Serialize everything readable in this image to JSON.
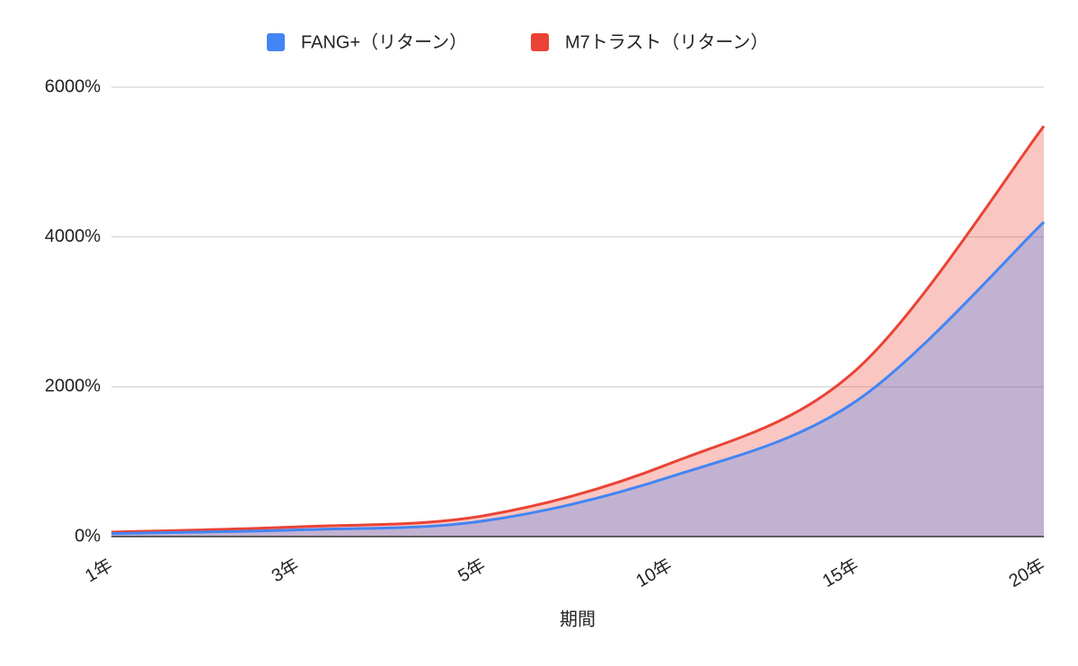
{
  "chart_data": {
    "type": "area",
    "categories": [
      "1年",
      "3年",
      "5年",
      "10年",
      "15年",
      "20年"
    ],
    "series": [
      {
        "name": "FANG+（リターン）",
        "color": "#4285f4",
        "values": [
          40,
          90,
          210,
          800,
          1820,
          4200
        ]
      },
      {
        "name": "M7トラスト（リターン）",
        "color": "#ea4335",
        "values": [
          60,
          130,
          280,
          980,
          2240,
          5480
        ]
      }
    ],
    "ylim": [
      0,
      6000
    ],
    "yticks": [
      {
        "value": 0,
        "label": "0%"
      },
      {
        "value": 2000,
        "label": "2000%"
      },
      {
        "value": 4000,
        "label": "4000%"
      },
      {
        "value": 6000,
        "label": "6000%"
      }
    ],
    "xlabel": "期間",
    "grid": true,
    "legend": "top"
  }
}
